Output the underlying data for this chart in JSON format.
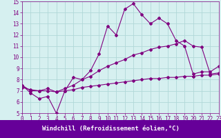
{
  "line1": [
    7.5,
    6.8,
    6.3,
    6.5,
    5.0,
    7.0,
    8.2,
    8.0,
    8.8,
    10.3,
    12.8,
    12.0,
    14.3,
    14.8,
    13.8,
    13.0,
    13.5,
    13.0,
    11.5,
    11.0,
    8.5,
    8.7,
    8.7,
    9.2
  ],
  "line2": [
    7.5,
    7.0,
    7.0,
    7.2,
    6.9,
    7.2,
    7.5,
    8.0,
    8.3,
    8.8,
    9.2,
    9.5,
    9.8,
    10.2,
    10.4,
    10.7,
    10.9,
    11.0,
    11.2,
    11.5,
    11.0,
    10.9,
    8.5,
    8.6
  ],
  "line3": [
    7.3,
    7.1,
    7.0,
    7.0,
    6.9,
    7.0,
    7.1,
    7.3,
    7.4,
    7.5,
    7.6,
    7.7,
    7.8,
    7.9,
    8.0,
    8.1,
    8.1,
    8.2,
    8.2,
    8.3,
    8.3,
    8.4,
    8.4,
    8.5
  ],
  "x_values": [
    0,
    1,
    2,
    3,
    4,
    5,
    6,
    7,
    8,
    9,
    10,
    11,
    12,
    13,
    14,
    15,
    16,
    17,
    18,
    19,
    20,
    21,
    22,
    23
  ],
  "line_color": "#800080",
  "bg_color": "#d6f0f0",
  "grid_color": "#b0d8d8",
  "xlabel": "Windchill (Refroidissement éolien,°C)",
  "xlabel_bg": "#660099",
  "ylim": [
    5,
    15
  ],
  "xlim": [
    0,
    23
  ],
  "yticks": [
    5,
    6,
    7,
    8,
    9,
    10,
    11,
    12,
    13,
    14,
    15
  ],
  "xticks": [
    0,
    1,
    2,
    3,
    4,
    5,
    6,
    7,
    8,
    9,
    10,
    11,
    12,
    13,
    14,
    15,
    16,
    17,
    18,
    19,
    20,
    21,
    22,
    23
  ],
  "marker": "D",
  "markersize": 2.0,
  "linewidth": 0.8,
  "tick_color": "#800080",
  "xlabel_fontsize": 6.5,
  "tick_fontsize": 5.5
}
